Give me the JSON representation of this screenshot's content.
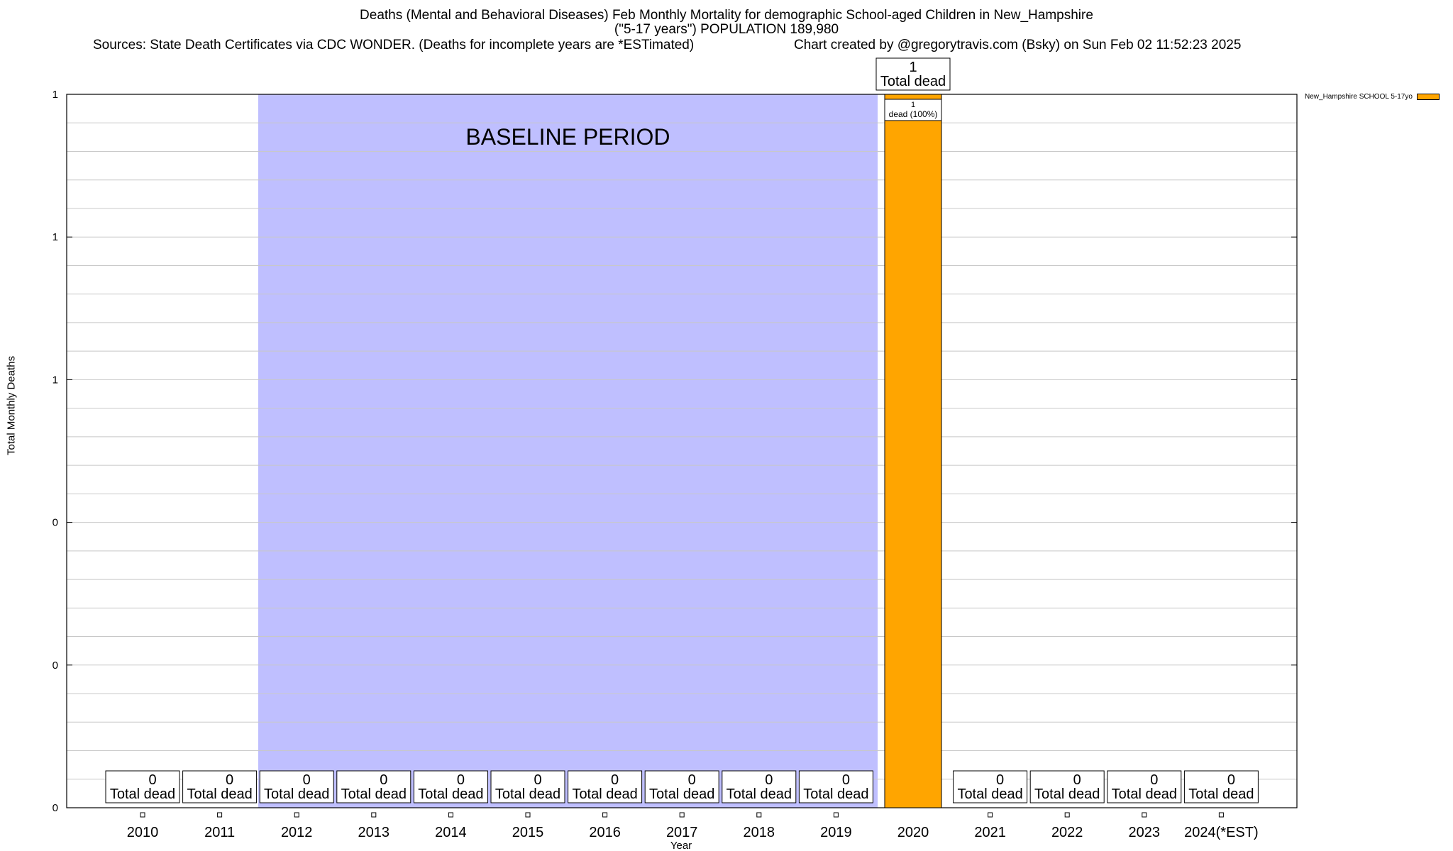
{
  "title_line1": "Deaths (Mental and Behavioral Diseases) Feb Monthly Mortality for demographic School-aged Children in New_Hampshire",
  "title_line2": "(\"5-17 years\") POPULATION 189,980",
  "sources": "Sources: State Death Certificates via CDC WONDER. (Deaths for incomplete years are *ESTimated)",
  "credit": "Chart created by @gregorytravis.com (Bsky) on Sun Feb 02 11:52:23 2025",
  "colors": {
    "bar": "#FFA500",
    "baseline": "#BFBFFF",
    "grid": "#C8C8C8"
  },
  "chart_data": {
    "type": "bar",
    "categories": [
      "2010",
      "2011",
      "2012",
      "2013",
      "2014",
      "2015",
      "2016",
      "2017",
      "2018",
      "2019",
      "2020",
      "2021",
      "2022",
      "2023",
      "2024(*EST)"
    ],
    "series": [
      {
        "name": "New_Hampshire SCHOOL 5-17yo",
        "values": [
          0,
          0,
          0,
          0,
          0,
          0,
          0,
          0,
          0,
          0,
          1,
          0,
          0,
          0,
          0
        ]
      }
    ],
    "xlabel": "Year",
    "ylabel": "Total Monthly Deaths",
    "ylim": [
      0,
      1
    ],
    "ytick_labels": [
      "0",
      "0",
      "0",
      "1",
      "1",
      "1"
    ],
    "total_label_suffix": "Total dead",
    "segment_label": {
      "count": "1",
      "text": "dead (100%)"
    },
    "annotation": "BASELINE PERIOD",
    "baseline_period": [
      "2012",
      "2019"
    ],
    "legend_position": "top-right",
    "grid": true
  }
}
